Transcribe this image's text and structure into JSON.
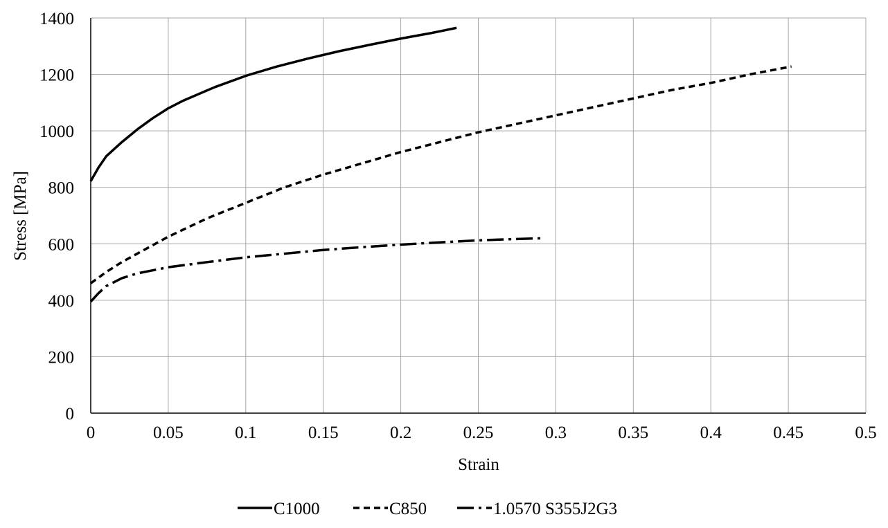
{
  "chart_data": {
    "type": "line",
    "title": "",
    "xlabel": "Strain",
    "ylabel": "Stress [MPa]",
    "xlim": [
      0,
      0.5
    ],
    "ylim": [
      0,
      1400
    ],
    "x_ticks": [
      "0",
      "0.05",
      "0.1",
      "0.15",
      "0.2",
      "0.25",
      "0.3",
      "0.35",
      "0.4",
      "0.45",
      "0.5"
    ],
    "y_ticks": [
      "0",
      "200",
      "400",
      "600",
      "800",
      "1000",
      "1200",
      "1400"
    ],
    "grid": true,
    "legend_position": "bottom",
    "series": [
      {
        "name": "C1000",
        "dash": "solid",
        "color": "#000000",
        "x": [
          0,
          0.005,
          0.01,
          0.02,
          0.03,
          0.04,
          0.05,
          0.06,
          0.08,
          0.1,
          0.12,
          0.14,
          0.16,
          0.18,
          0.2,
          0.22,
          0.236
        ],
        "y": [
          822,
          870,
          910,
          960,
          1005,
          1045,
          1080,
          1108,
          1155,
          1195,
          1228,
          1256,
          1282,
          1305,
          1327,
          1347,
          1365
        ]
      },
      {
        "name": "C850",
        "dash": "dashed",
        "color": "#000000",
        "x": [
          0,
          0.01,
          0.02,
          0.03,
          0.05,
          0.075,
          0.1,
          0.125,
          0.15,
          0.175,
          0.2,
          0.225,
          0.25,
          0.275,
          0.3,
          0.325,
          0.35,
          0.375,
          0.4,
          0.425,
          0.452
        ],
        "y": [
          460,
          500,
          535,
          565,
          625,
          690,
          745,
          800,
          845,
          885,
          925,
          960,
          995,
          1025,
          1055,
          1085,
          1115,
          1145,
          1170,
          1200,
          1228
        ]
      },
      {
        "name": "1.0570 S355J2G3",
        "dash": "dash-dot",
        "color": "#000000",
        "x": [
          0,
          0.005,
          0.01,
          0.02,
          0.03,
          0.05,
          0.075,
          0.1,
          0.125,
          0.15,
          0.175,
          0.2,
          0.225,
          0.25,
          0.275,
          0.293
        ],
        "y": [
          395,
          425,
          450,
          478,
          495,
          517,
          535,
          552,
          565,
          578,
          588,
          597,
          605,
          612,
          617,
          620
        ]
      }
    ]
  }
}
